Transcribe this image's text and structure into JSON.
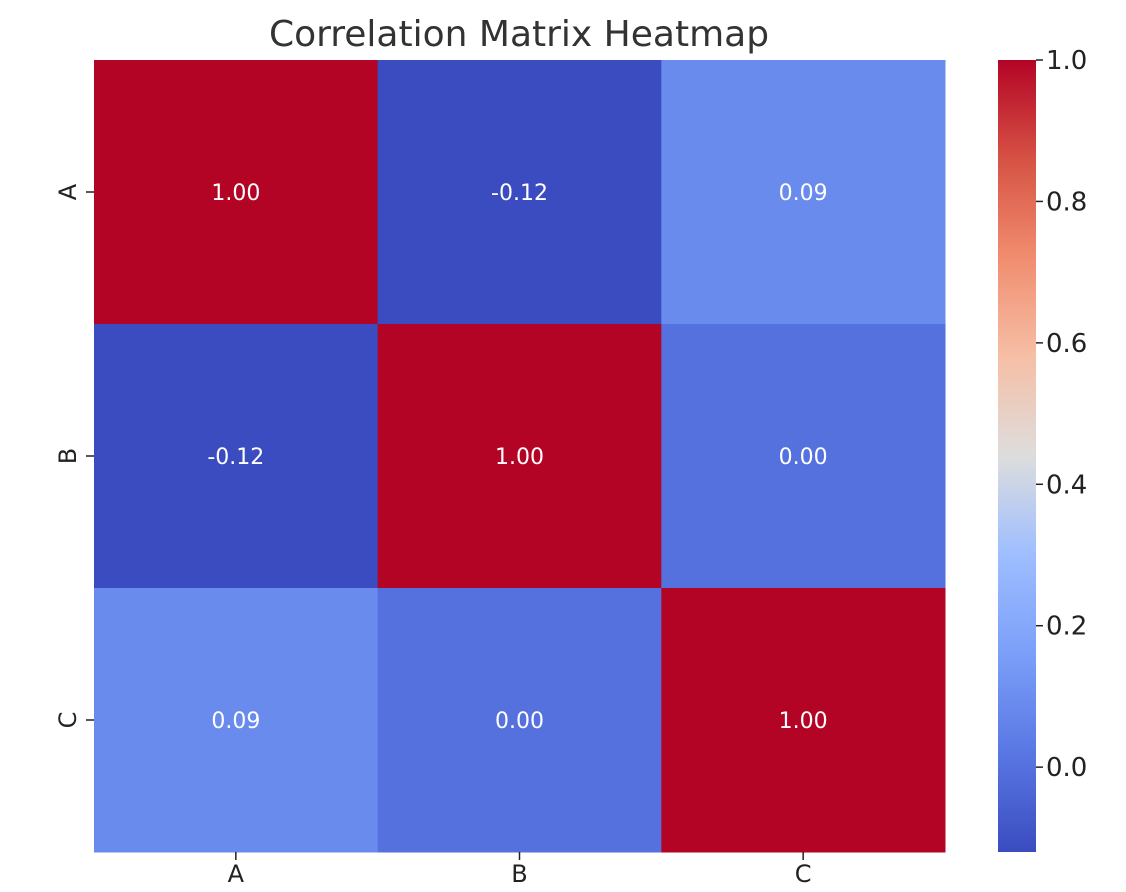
{
  "chart_data": {
    "type": "heatmap",
    "title": "Correlation Matrix Heatmap",
    "x_categories": [
      "A",
      "B",
      "C"
    ],
    "y_categories": [
      "A",
      "B",
      "C"
    ],
    "values": [
      [
        1.0,
        -0.12,
        0.09
      ],
      [
        -0.12,
        1.0,
        0.0
      ],
      [
        0.09,
        0.0,
        1.0
      ]
    ],
    "cell_labels": [
      [
        "1.00",
        "-0.12",
        "0.09"
      ],
      [
        "-0.12",
        "1.00",
        "0.00"
      ],
      [
        "0.09",
        "0.00",
        "1.00"
      ]
    ],
    "colormap": "coolwarm",
    "color_range": [
      -0.12,
      1.0
    ],
    "colorbar_ticks": [
      "0.0",
      "0.2",
      "0.4",
      "0.6",
      "0.8",
      "1.0"
    ],
    "colorbar_tick_values": [
      0.0,
      0.2,
      0.4,
      0.6,
      0.8,
      1.0
    ],
    "annotations": true,
    "annotation_color": "#ffffff",
    "title_color": "#333333",
    "text_color": "#222222"
  }
}
